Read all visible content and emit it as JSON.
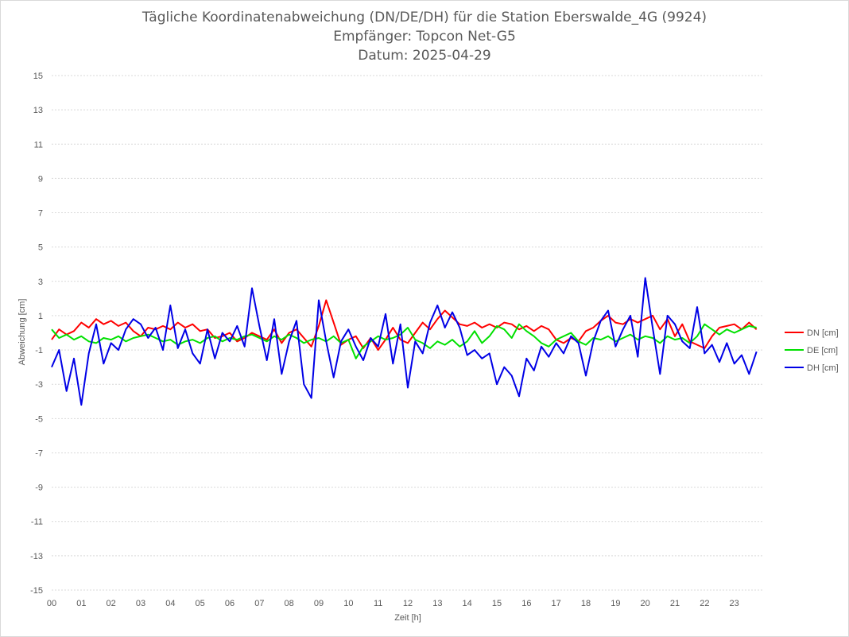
{
  "header": {
    "title_line1": "Tägliche Koordinatenabweichung (DN/DE/DH) für die Station Eberswalde_4G (9924)",
    "title_line2": "Empfänger: Topcon Net-G5",
    "title_line3": "Datum: 2025-04-29"
  },
  "chart_data": {
    "type": "line",
    "xlabel": "Zeit [h]",
    "ylabel": "Abweichung [cm]",
    "xlim": [
      0,
      24
    ],
    "ylim": [
      -15,
      15
    ],
    "x_ticks": [
      "00",
      "01",
      "02",
      "03",
      "04",
      "05",
      "06",
      "07",
      "08",
      "09",
      "10",
      "11",
      "12",
      "13",
      "14",
      "15",
      "16",
      "17",
      "18",
      "19",
      "20",
      "21",
      "22",
      "23"
    ],
    "y_ticks": [
      15,
      13,
      11,
      9,
      7,
      5,
      3,
      1,
      -1,
      -3,
      -5,
      -7,
      -9,
      -11,
      -13,
      -15
    ],
    "grid": "horizontal dotted",
    "legend_position": "right",
    "x_hours": [
      0,
      0.25,
      0.5,
      0.75,
      1,
      1.25,
      1.5,
      1.75,
      2,
      2.25,
      2.5,
      2.75,
      3,
      3.25,
      3.5,
      3.75,
      4,
      4.25,
      4.5,
      4.75,
      5,
      5.25,
      5.5,
      5.75,
      6,
      6.25,
      6.5,
      6.75,
      7,
      7.25,
      7.5,
      7.75,
      8,
      8.25,
      8.5,
      8.75,
      9,
      9.25,
      9.5,
      9.75,
      10,
      10.25,
      10.5,
      10.75,
      11,
      11.25,
      11.5,
      11.75,
      12,
      12.25,
      12.5,
      12.75,
      13,
      13.25,
      13.5,
      13.75,
      14,
      14.25,
      14.5,
      14.75,
      15,
      15.25,
      15.5,
      15.75,
      16,
      16.25,
      16.5,
      16.75,
      17,
      17.25,
      17.5,
      17.75,
      18,
      18.25,
      18.5,
      18.75,
      19,
      19.25,
      19.5,
      19.75,
      20,
      20.25,
      20.5,
      20.75,
      21,
      21.25,
      21.5,
      21.75,
      22,
      22.25,
      22.5,
      22.75,
      23,
      23.25,
      23.5,
      23.75
    ],
    "series": [
      {
        "name": "DN [cm]",
        "color": "#ff0000",
        "values": [
          -0.4,
          0.2,
          -0.1,
          0.1,
          0.6,
          0.3,
          0.8,
          0.5,
          0.7,
          0.4,
          0.6,
          0.1,
          -0.2,
          0.3,
          0.2,
          0.4,
          0.2,
          0.6,
          0.3,
          0.5,
          0.1,
          0.2,
          -0.3,
          -0.2,
          0.0,
          -0.5,
          -0.3,
          0.0,
          -0.2,
          -0.4,
          0.2,
          -0.6,
          0.0,
          0.2,
          -0.3,
          -0.8,
          0.4,
          1.9,
          0.6,
          -0.7,
          -0.4,
          -0.2,
          -0.9,
          -0.3,
          -1.0,
          -0.4,
          0.3,
          -0.4,
          -0.6,
          0.0,
          0.6,
          0.2,
          0.8,
          1.3,
          0.9,
          0.5,
          0.4,
          0.6,
          0.3,
          0.5,
          0.3,
          0.6,
          0.5,
          0.2,
          0.4,
          0.1,
          0.4,
          0.2,
          -0.4,
          -0.6,
          -0.3,
          -0.5,
          0.1,
          0.3,
          0.7,
          1.0,
          0.6,
          0.5,
          0.8,
          0.6,
          0.8,
          1.0,
          0.2,
          0.8,
          -0.2,
          0.5,
          -0.5,
          -0.7,
          -0.9,
          -0.2,
          0.3,
          0.4,
          0.5,
          0.2,
          0.6,
          0.2
        ]
      },
      {
        "name": "DE [cm]",
        "color": "#00e000",
        "values": [
          0.2,
          -0.3,
          -0.1,
          -0.4,
          -0.2,
          -0.5,
          -0.6,
          -0.3,
          -0.4,
          -0.2,
          -0.5,
          -0.3,
          -0.2,
          -0.1,
          -0.3,
          -0.5,
          -0.4,
          -0.7,
          -0.5,
          -0.4,
          -0.6,
          -0.3,
          -0.2,
          -0.5,
          -0.3,
          -0.4,
          -0.2,
          -0.1,
          -0.3,
          -0.5,
          -0.2,
          -0.4,
          -0.1,
          -0.3,
          -0.6,
          -0.4,
          -0.3,
          -0.5,
          -0.2,
          -0.6,
          -0.4,
          -1.5,
          -0.8,
          -0.5,
          -0.2,
          -0.4,
          -0.3,
          -0.1,
          0.3,
          -0.4,
          -0.6,
          -0.9,
          -0.5,
          -0.7,
          -0.4,
          -0.8,
          -0.5,
          0.1,
          -0.6,
          -0.2,
          0.4,
          0.2,
          -0.3,
          0.5,
          0.1,
          -0.2,
          -0.6,
          -0.8,
          -0.4,
          -0.2,
          0.0,
          -0.5,
          -0.7,
          -0.3,
          -0.4,
          -0.2,
          -0.5,
          -0.3,
          -0.1,
          -0.4,
          -0.2,
          -0.3,
          -0.6,
          -0.2,
          -0.4,
          -0.3,
          -0.6,
          -0.2,
          0.5,
          0.2,
          -0.1,
          0.2,
          0.0,
          0.2,
          0.4,
          0.3
        ]
      },
      {
        "name": "DH [cm]",
        "color": "#0000e6",
        "values": [
          -2.0,
          -1.0,
          -3.4,
          -1.5,
          -4.2,
          -1.2,
          0.5,
          -1.8,
          -0.6,
          -1.0,
          0.2,
          0.8,
          0.5,
          -0.3,
          0.3,
          -1.0,
          1.6,
          -0.9,
          0.2,
          -1.2,
          -1.8,
          0.2,
          -1.5,
          0.0,
          -0.5,
          0.4,
          -0.8,
          2.6,
          0.4,
          -1.6,
          0.8,
          -2.4,
          -0.5,
          0.7,
          -3.0,
          -3.8,
          1.9,
          -0.5,
          -2.6,
          -0.5,
          0.2,
          -0.8,
          -1.6,
          -0.3,
          -0.8,
          1.1,
          -1.8,
          0.5,
          -3.2,
          -0.5,
          -1.2,
          0.6,
          1.6,
          0.3,
          1.2,
          0.3,
          -1.3,
          -1.0,
          -1.5,
          -1.2,
          -3.0,
          -2.0,
          -2.5,
          -3.7,
          -1.5,
          -2.2,
          -0.8,
          -1.4,
          -0.6,
          -1.2,
          -0.2,
          -0.6,
          -2.5,
          -0.5,
          0.7,
          1.3,
          -0.8,
          0.2,
          1.0,
          -1.4,
          3.2,
          0.3,
          -2.4,
          1.0,
          0.5,
          -0.5,
          -0.9,
          1.5,
          -1.2,
          -0.7,
          -1.7,
          -0.6,
          -1.8,
          -1.3,
          -2.4,
          -1.1
        ]
      }
    ]
  }
}
